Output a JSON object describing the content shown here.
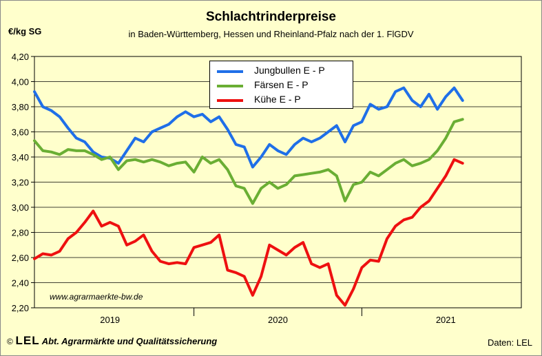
{
  "header": {
    "title": "Schlachtrinderpreise",
    "subtitle": "in Baden-Württemberg, Hessen und Rheinland-Pfalz  nach der 1. FlGDV",
    "unit": "€/kg SG"
  },
  "footer": {
    "copyright": "©",
    "logo": "LEL",
    "department": "Abt. Agrarmärkte und Qualitätssicherung",
    "source": "Daten: LEL"
  },
  "watermark": "www.agrarmaerkte-bw.de",
  "colors": {
    "background": "#ffffcc",
    "jungbullen": "#1f6fe8",
    "faersen": "#6aae34",
    "kuehe": "#ee1010"
  },
  "chart_data": {
    "type": "line",
    "title": "Schlachtrinderpreise",
    "subtitle": "in Baden-Württemberg, Hessen und Rheinland-Pfalz  nach der 1. FlGDV",
    "ylabel": "€/kg SG",
    "ylim": [
      2.2,
      4.2
    ],
    "xlim": [
      2018.55,
      2021.45
    ],
    "yticks": [
      "2,20",
      "2,40",
      "2,60",
      "2,80",
      "3,00",
      "3,20",
      "3,40",
      "3,60",
      "3,80",
      "4,00",
      "4,20"
    ],
    "x_tick_labels": [
      {
        "label": "2019",
        "x": 2019.0
      },
      {
        "label": "2020",
        "x": 2020.0
      },
      {
        "label": "2021",
        "x": 2021.0
      }
    ],
    "x_year_boundaries": [
      2019.5,
      2020.5
    ],
    "grid": true,
    "legend_position": "top-center",
    "series": [
      {
        "name": "Jungbullen E - P",
        "color": "#1f6fe8",
        "x": [
          2018.55,
          2018.6,
          2018.65,
          2018.7,
          2018.75,
          2018.8,
          2018.85,
          2018.9,
          2018.95,
          2019.0,
          2019.05,
          2019.1,
          2019.15,
          2019.2,
          2019.25,
          2019.3,
          2019.35,
          2019.4,
          2019.45,
          2019.5,
          2019.55,
          2019.6,
          2019.65,
          2019.7,
          2019.75,
          2019.8,
          2019.85,
          2019.9,
          2019.95,
          2020.0,
          2020.05,
          2020.1,
          2020.15,
          2020.2,
          2020.25,
          2020.3,
          2020.35,
          2020.4,
          2020.45,
          2020.5,
          2020.55,
          2020.6,
          2020.65,
          2020.7,
          2020.75,
          2020.8,
          2020.85,
          2020.9,
          2020.95,
          2021.0,
          2021.05,
          2021.1
        ],
        "values": [
          3.92,
          3.8,
          3.77,
          3.72,
          3.63,
          3.55,
          3.52,
          3.44,
          3.4,
          3.39,
          3.35,
          3.45,
          3.55,
          3.52,
          3.6,
          3.63,
          3.66,
          3.72,
          3.76,
          3.72,
          3.74,
          3.68,
          3.72,
          3.62,
          3.5,
          3.48,
          3.32,
          3.4,
          3.5,
          3.45,
          3.42,
          3.5,
          3.55,
          3.52,
          3.55,
          3.6,
          3.65,
          3.52,
          3.65,
          3.68,
          3.82,
          3.78,
          3.8,
          3.92,
          3.95,
          3.85,
          3.8,
          3.9,
          3.78,
          3.88,
          3.95,
          3.85
        ]
      },
      {
        "name": "Färsen E - P",
        "color": "#6aae34",
        "x": [
          2018.55,
          2018.6,
          2018.65,
          2018.7,
          2018.75,
          2018.8,
          2018.85,
          2018.9,
          2018.95,
          2019.0,
          2019.05,
          2019.1,
          2019.15,
          2019.2,
          2019.25,
          2019.3,
          2019.35,
          2019.4,
          2019.45,
          2019.5,
          2019.55,
          2019.6,
          2019.65,
          2019.7,
          2019.75,
          2019.8,
          2019.85,
          2019.9,
          2019.95,
          2020.0,
          2020.05,
          2020.1,
          2020.15,
          2020.2,
          2020.25,
          2020.3,
          2020.35,
          2020.4,
          2020.45,
          2020.5,
          2020.55,
          2020.6,
          2020.65,
          2020.7,
          2020.75,
          2020.8,
          2020.85,
          2020.9,
          2020.95,
          2021.0,
          2021.05,
          2021.1
        ],
        "values": [
          3.53,
          3.45,
          3.44,
          3.42,
          3.46,
          3.45,
          3.45,
          3.42,
          3.38,
          3.4,
          3.3,
          3.37,
          3.38,
          3.36,
          3.38,
          3.36,
          3.33,
          3.35,
          3.36,
          3.28,
          3.4,
          3.35,
          3.38,
          3.3,
          3.17,
          3.15,
          3.03,
          3.15,
          3.2,
          3.15,
          3.18,
          3.25,
          3.26,
          3.27,
          3.28,
          3.3,
          3.25,
          3.05,
          3.18,
          3.2,
          3.28,
          3.25,
          3.3,
          3.35,
          3.38,
          3.33,
          3.35,
          3.38,
          3.45,
          3.55,
          3.68,
          3.7
        ]
      },
      {
        "name": "Kühe E - P",
        "color": "#ee1010",
        "x": [
          2018.55,
          2018.6,
          2018.65,
          2018.7,
          2018.75,
          2018.8,
          2018.85,
          2018.9,
          2018.95,
          2019.0,
          2019.05,
          2019.1,
          2019.15,
          2019.2,
          2019.25,
          2019.3,
          2019.35,
          2019.4,
          2019.45,
          2019.5,
          2019.55,
          2019.6,
          2019.65,
          2019.7,
          2019.75,
          2019.8,
          2019.85,
          2019.9,
          2019.95,
          2020.0,
          2020.05,
          2020.1,
          2020.15,
          2020.2,
          2020.25,
          2020.3,
          2020.35,
          2020.4,
          2020.45,
          2020.5,
          2020.55,
          2020.6,
          2020.65,
          2020.7,
          2020.75,
          2020.8,
          2020.85,
          2020.9,
          2020.95,
          2021.0,
          2021.05,
          2021.1
        ],
        "values": [
          2.59,
          2.63,
          2.62,
          2.65,
          2.75,
          2.8,
          2.88,
          2.97,
          2.85,
          2.88,
          2.85,
          2.7,
          2.73,
          2.78,
          2.65,
          2.57,
          2.55,
          2.56,
          2.55,
          2.68,
          2.7,
          2.72,
          2.78,
          2.5,
          2.48,
          2.45,
          2.3,
          2.45,
          2.7,
          2.66,
          2.62,
          2.68,
          2.72,
          2.55,
          2.52,
          2.55,
          2.3,
          2.22,
          2.35,
          2.52,
          2.58,
          2.57,
          2.75,
          2.85,
          2.9,
          2.92,
          3.0,
          3.05,
          3.15,
          3.25,
          3.38,
          3.35
        ]
      }
    ]
  }
}
